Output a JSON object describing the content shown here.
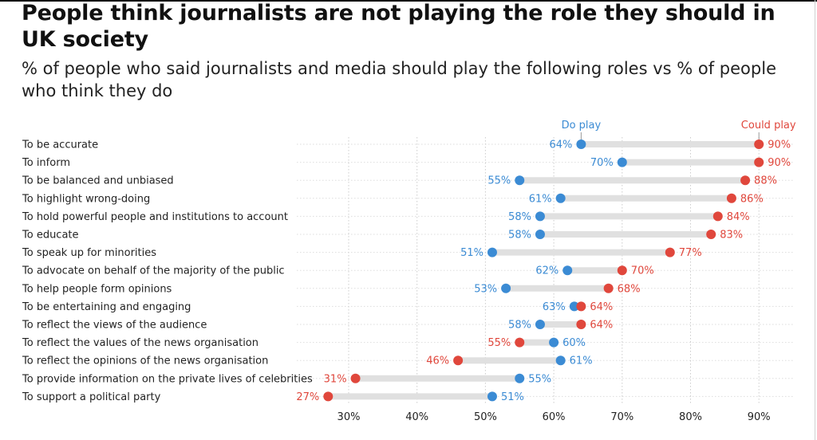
{
  "title": "People think journalists are not playing the role they should in UK society",
  "subtitle": "% of people who said journalists and media should play the following roles vs % of people who think they do",
  "colors": {
    "do": "#3b8bd4",
    "could": "#e0473c",
    "bar": "#e0e0e0",
    "label": "#222222",
    "grid": "#cccccc"
  },
  "chart_data": {
    "type": "dumbbell",
    "series": [
      {
        "name": "Do play",
        "color": "#3b8bd4"
      },
      {
        "name": "Could play",
        "color": "#e0473c"
      }
    ],
    "categories": [
      "To be accurate",
      "To inform",
      "To be balanced and unbiased",
      "To highlight wrong-doing",
      "To hold powerful people and institutions to account",
      "To educate",
      "To speak up for minorities",
      "To advocate on behalf of the majority of the public",
      "To help people form opinions",
      "To be entertaining and engaging",
      "To reflect the views of the audience",
      "To reflect the values of the news organisation",
      "To reflect the opinions of the news organisation",
      "To provide information on the private lives of celebrities",
      "To support a political party"
    ],
    "do_play": [
      64,
      70,
      55,
      61,
      58,
      58,
      51,
      62,
      53,
      63,
      58,
      60,
      61,
      55,
      51
    ],
    "could_play": [
      90,
      90,
      88,
      86,
      84,
      83,
      77,
      70,
      68,
      64,
      64,
      55,
      46,
      31,
      27
    ],
    "xlim": [
      25,
      95
    ],
    "xticks": [
      30,
      40,
      50,
      60,
      70,
      80,
      90
    ],
    "tick_format": "%",
    "value_format": "%",
    "grid": true
  }
}
